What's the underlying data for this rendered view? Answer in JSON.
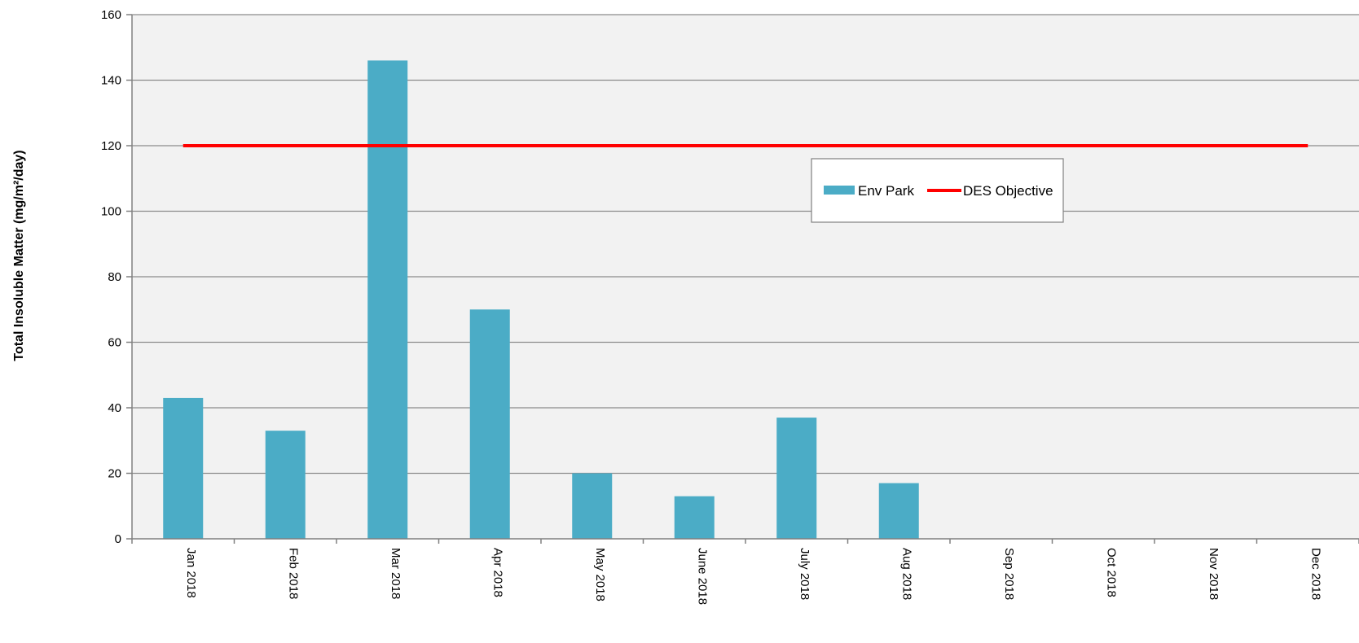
{
  "chart_data": {
    "type": "bar",
    "title": "",
    "xlabel": "",
    "ylabel": "Total Insoluble Matter (mg/m²/day)",
    "categories": [
      "Jan 2018",
      "Feb 2018",
      "Mar 2018",
      "Apr 2018",
      "May 2018",
      "June 2018",
      "July 2018",
      "Aug 2018",
      "Sep 2018",
      "Oct 2018",
      "Nov 2018",
      "Dec 2018"
    ],
    "series": [
      {
        "name": "Env Park",
        "kind": "bar",
        "color": "#4bacc6",
        "values": [
          43,
          33,
          146,
          70,
          20,
          13,
          37,
          17,
          null,
          null,
          null,
          null
        ]
      },
      {
        "name": "DES Objective",
        "kind": "line",
        "color": "#ff0000",
        "values": [
          120,
          120,
          120,
          120,
          120,
          120,
          120,
          120,
          120,
          120,
          120,
          120
        ]
      }
    ],
    "ylim": [
      0,
      160
    ],
    "yticks": [
      0,
      20,
      40,
      60,
      80,
      100,
      120,
      140,
      160
    ],
    "grid": true,
    "legend_position": "upper-right",
    "colors": {
      "plot_background": "#f2f2f2",
      "gridline": "#8c8c8c"
    }
  }
}
